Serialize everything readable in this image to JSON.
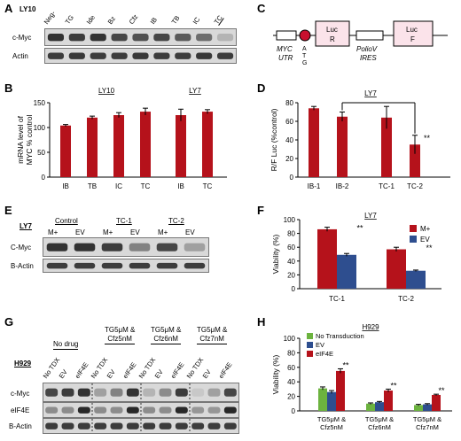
{
  "panels": {
    "A": {
      "letter": "A",
      "cell_line": "LY10",
      "lanes": [
        "Neg-",
        "TG",
        "Ide",
        "Bz",
        "Cfz",
        "IB",
        "TB",
        "IC",
        "TC"
      ],
      "rows": [
        "c-Myc",
        "Actin"
      ]
    },
    "B": {
      "letter": "B",
      "ylabel_line1": "mRNA level of",
      "ylabel_line2": "MYC % control",
      "ly10_label": "LY10",
      "ly7_label": "LY7",
      "yticks": [
        "0",
        "50",
        "100",
        "150"
      ]
    },
    "C": {
      "letter": "C",
      "myc_utr": "MYC",
      "utr": "UTR",
      "atg": [
        "A",
        "T",
        "G"
      ],
      "luc_r": [
        "Luc",
        "R"
      ],
      "poliov": "PolioV",
      "ires": "IRES",
      "luc_f": [
        "Luc",
        "F"
      ]
    },
    "D": {
      "letter": "D",
      "title": "LY7",
      "ylabel": "R/F Luc (%control)",
      "yticks": [
        "0",
        "20",
        "40",
        "60",
        "80"
      ],
      "sig": "**"
    },
    "E": {
      "letter": "E",
      "cell_line": "LY7",
      "groups": [
        "Control",
        "TC-1",
        "TC-2"
      ],
      "lanes": [
        "M+",
        "EV",
        "M+",
        "EV",
        "M+",
        "EV"
      ],
      "rows": [
        "C-Myc",
        "B-Actin"
      ]
    },
    "F": {
      "letter": "F",
      "title": "LY7",
      "ylabel": "Viability (%)",
      "yticks": [
        "0",
        "20",
        "40",
        "60",
        "80",
        "100"
      ],
      "sig": "**"
    },
    "G": {
      "letter": "G",
      "cell_line": "H929",
      "groups": [
        "No drug",
        "TG5μM &",
        "TG5μM &",
        "TG5μM &"
      ],
      "groups2": [
        "",
        "Cfz5nM",
        "Cfz6nM",
        "Cfz7nM"
      ],
      "lanes": [
        "No TDX",
        "EV",
        "eIF4E",
        "No TDX",
        "EV",
        "eIF4E",
        "No TDX",
        "EV",
        "eIF4E",
        "No TDX",
        "EV",
        "eIF4E"
      ],
      "rows": [
        "c-Myc",
        "eIF4E",
        "B-Actin"
      ]
    },
    "H": {
      "letter": "H",
      "title": "H929",
      "ylabel": "Viability (%)",
      "yticks": [
        "0",
        "20",
        "40",
        "60",
        "80",
        "100"
      ],
      "sig": "**"
    }
  },
  "chart_data": [
    {
      "panel": "B",
      "type": "bar",
      "categories": [
        "IB",
        "TB",
        "IC",
        "TC",
        "IB",
        "TC"
      ],
      "groups": [
        "LY10",
        "LY10",
        "LY10",
        "LY10",
        "LY7",
        "LY7"
      ],
      "values": [
        104,
        120,
        125,
        132,
        125,
        132
      ],
      "errors": [
        2,
        3,
        5,
        7,
        12,
        4
      ],
      "ylabel": "mRNA level of MYC % control",
      "ylim": [
        0,
        150
      ],
      "color": "#b5121b"
    },
    {
      "panel": "D",
      "type": "bar",
      "categories": [
        "IB-1",
        "IB-2",
        "TC-1",
        "TC-2"
      ],
      "values": [
        74,
        65,
        64,
        35
      ],
      "errors": [
        2,
        5,
        12,
        10
      ],
      "ylabel": "R/F Luc (%control)",
      "ylim": [
        0,
        80
      ],
      "color": "#b5121b"
    },
    {
      "panel": "F",
      "type": "bar",
      "categories": [
        "TC-1",
        "TC-2"
      ],
      "series": [
        {
          "name": "M+",
          "values": [
            86,
            57
          ],
          "errors": [
            3,
            3
          ],
          "color": "#b5121b"
        },
        {
          "name": "EV",
          "values": [
            49,
            26
          ],
          "errors": [
            2,
            1
          ],
          "color": "#2e4e8f"
        }
      ],
      "ylabel": "Viability (%)",
      "ylim": [
        0,
        100
      ],
      "legend": "top-right"
    },
    {
      "panel": "H",
      "type": "bar",
      "categories": [
        "TG5μM & Cfz5nM",
        "TG5μM & Cfz6nM",
        "TG5μM & Cfz7nM"
      ],
      "series": [
        {
          "name": "No Transduction",
          "values": [
            31,
            10,
            8
          ],
          "errors": [
            2,
            1,
            1
          ],
          "color": "#6cb33f"
        },
        {
          "name": "EV",
          "values": [
            26,
            12,
            9
          ],
          "errors": [
            2,
            1,
            1
          ],
          "color": "#2e4e8f"
        },
        {
          "name": "eIF4E",
          "values": [
            55,
            28,
            22
          ],
          "errors": [
            3,
            2,
            1
          ],
          "color": "#b5121b"
        }
      ],
      "ylabel": "Viability (%)",
      "ylim": [
        0,
        100
      ],
      "legend": "top-left"
    }
  ]
}
